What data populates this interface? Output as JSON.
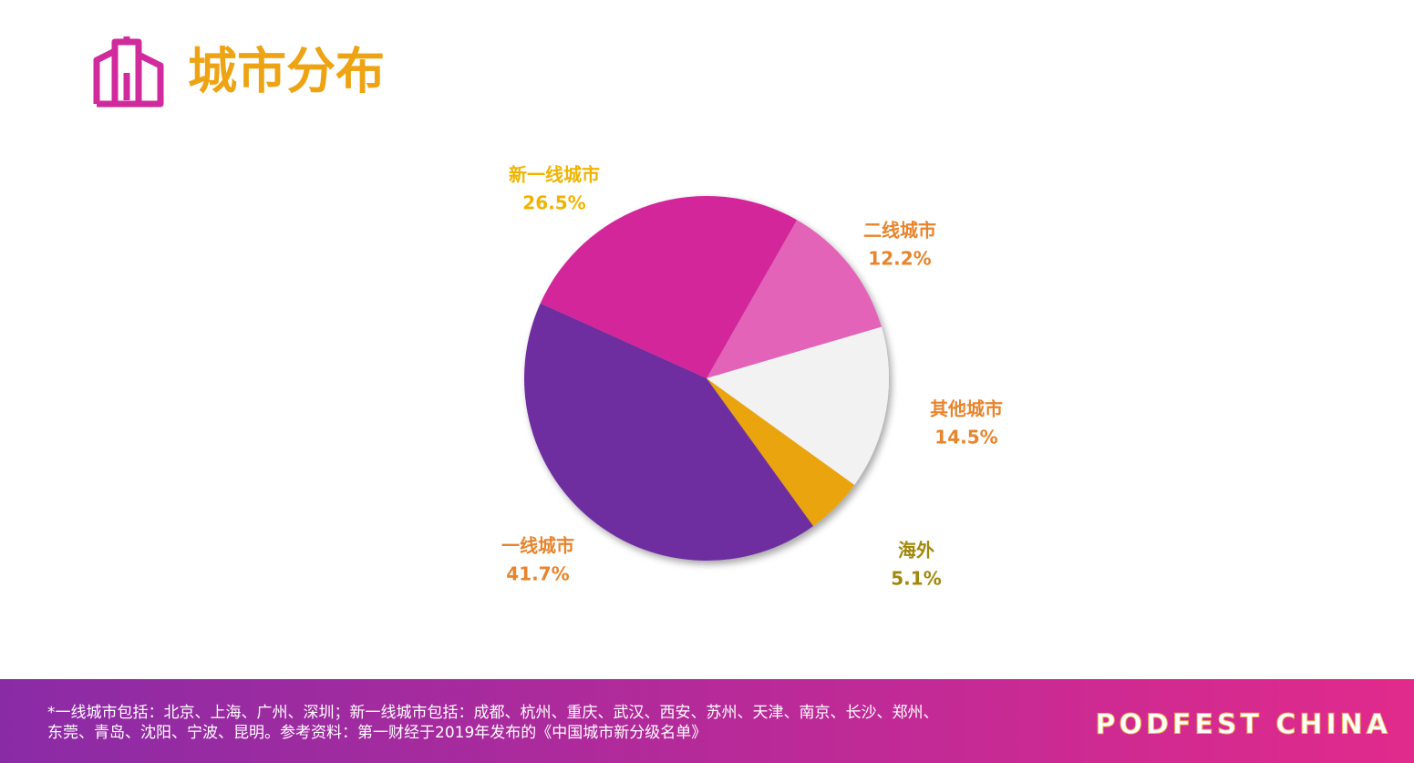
{
  "title": "城市分布",
  "chart_data": {
    "type": "pie",
    "categories": [
      "二线城市",
      "其他城市",
      "海外",
      "一线城市",
      "新一线城市"
    ],
    "values": [
      12.2,
      14.5,
      5.1,
      41.7,
      26.5
    ],
    "value_labels": [
      "12.2%",
      "14.5%",
      "5.1%",
      "41.7%",
      "26.5%"
    ],
    "colors": [
      "#e264b8",
      "#f2f2f2",
      "#eaa40c",
      "#6e2fa0",
      "#d2259a"
    ],
    "label_colors": [
      "#e8842c",
      "#e8842c",
      "#a0880c",
      "#e8842c",
      "#f0b400"
    ]
  },
  "footnote": [
    "*一线城市包括：北京、上海、广州、深圳；新一线城市包括：成都、杭州、重庆、武汉、西安、苏州、天津、南京、长沙、郑州、",
    "东莞、青岛、沈阳、宁波、昆明。参考资料：第一财经于2019年发布的《中国城市新分级名单》"
  ],
  "brand": "PODFEST CHINA"
}
